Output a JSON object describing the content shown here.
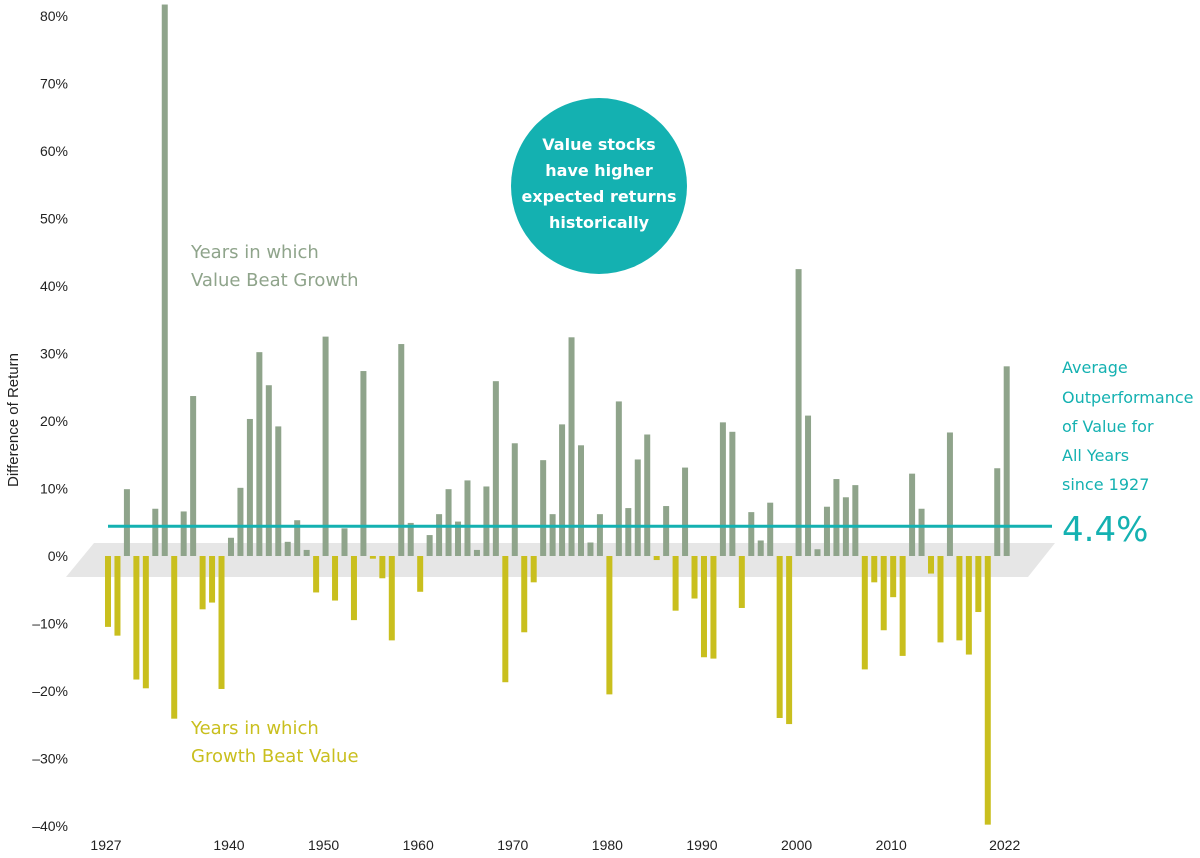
{
  "chart_data": {
    "type": "bar",
    "ylabel": "Difference of Return",
    "ylim": [
      -40,
      80
    ],
    "yticks": [
      "80%",
      "70%",
      "60%",
      "50%",
      "40%",
      "30%",
      "20%",
      "10%",
      "0%",
      "–10%",
      "–20%",
      "–30%",
      "–40%"
    ],
    "xticks": [
      "1927",
      "1940",
      "1950",
      "1960",
      "1970",
      "1980",
      "1990",
      "2000",
      "2010",
      "2022"
    ],
    "years": [
      1927,
      1928,
      1929,
      1930,
      1931,
      1932,
      1933,
      1934,
      1935,
      1936,
      1937,
      1938,
      1939,
      1940,
      1941,
      1942,
      1943,
      1944,
      1945,
      1946,
      1947,
      1948,
      1949,
      1950,
      1951,
      1952,
      1953,
      1954,
      1955,
      1956,
      1957,
      1958,
      1959,
      1960,
      1961,
      1962,
      1963,
      1964,
      1965,
      1966,
      1967,
      1968,
      1969,
      1970,
      1971,
      1972,
      1973,
      1974,
      1975,
      1976,
      1977,
      1978,
      1979,
      1980,
      1981,
      1982,
      1983,
      1984,
      1985,
      1986,
      1987,
      1988,
      1989,
      1990,
      1991,
      1992,
      1993,
      1994,
      1995,
      1996,
      1997,
      1998,
      1999,
      2000,
      2001,
      2002,
      2003,
      2004,
      2005,
      2006,
      2007,
      2008,
      2009,
      2010,
      2011,
      2012,
      2013,
      2014,
      2015,
      2016,
      2017,
      2018,
      2019,
      2020,
      2021,
      2022
    ],
    "values": [
      -10.5,
      -11.8,
      9.9,
      -18.3,
      -19.6,
      7.0,
      81.7,
      -24.1,
      6.6,
      23.7,
      -7.9,
      -6.9,
      -19.7,
      2.7,
      10.1,
      20.3,
      30.2,
      25.3,
      19.2,
      2.1,
      5.3,
      0.9,
      -5.4,
      32.5,
      -6.6,
      4.1,
      -9.5,
      27.4,
      -0.4,
      -3.3,
      -12.5,
      31.4,
      4.9,
      -5.3,
      3.1,
      6.2,
      9.9,
      5.1,
      11.2,
      0.9,
      10.3,
      25.9,
      -18.7,
      16.7,
      -11.3,
      -3.9,
      14.2,
      6.2,
      19.5,
      32.4,
      16.4,
      2.0,
      6.2,
      -20.5,
      22.9,
      7.1,
      14.3,
      18.0,
      -0.6,
      7.4,
      -8.1,
      13.1,
      -6.3,
      -15.0,
      -15.2,
      19.8,
      18.4,
      -7.7,
      6.5,
      2.3,
      7.9,
      -24.0,
      -24.9,
      42.5,
      20.8,
      1.0,
      7.3,
      11.4,
      8.7,
      10.5,
      -16.8,
      -3.9,
      -11.0,
      -6.1,
      -14.8,
      12.2,
      7.0,
      -2.6,
      -12.8,
      18.3,
      -12.5,
      -14.6,
      -8.3,
      -39.8,
      13.0,
      28.1
    ],
    "average": 4.4,
    "average_label": "4.4%",
    "colors": {
      "value_beat": "#8fa48b",
      "growth_beat": "#c9bf1e",
      "average_line": "#14b1b1",
      "band": "#e6e6e6",
      "callout": "#14b1b1"
    }
  },
  "annotations": {
    "value_beat_line1": "Years in which",
    "value_beat_line2": "Value Beat Growth",
    "growth_beat_line1": "Years in which",
    "growth_beat_line2": "Growth Beat Value",
    "callout_lines": [
      "Value stocks",
      "have higher",
      "expected returns",
      "historically"
    ],
    "avg_lines": [
      "Average",
      "Outperformance",
      "of Value for",
      "All Years",
      "since 1927"
    ]
  }
}
